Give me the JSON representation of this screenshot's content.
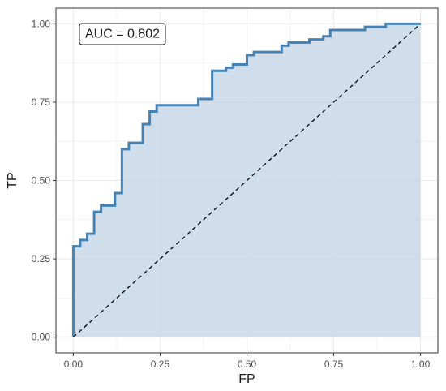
{
  "chart_data": {
    "type": "area",
    "xlabel": "FP",
    "ylabel": "TP",
    "xlim": [
      -0.05,
      1.05
    ],
    "ylim": [
      -0.05,
      1.05
    ],
    "x_ticks": [
      0.0,
      0.25,
      0.5,
      0.75,
      1.0
    ],
    "x_tick_labels": [
      "0.00",
      "0.25",
      "0.50",
      "0.75",
      "1.00"
    ],
    "y_ticks": [
      0.0,
      0.25,
      0.5,
      0.75,
      1.0
    ],
    "y_tick_labels": [
      "0.00",
      "0.25",
      "0.50",
      "0.75",
      "1.00"
    ],
    "grid": true,
    "annotation": "AUC = 0.802",
    "reference_line": {
      "x": [
        0,
        1
      ],
      "y": [
        0,
        1
      ],
      "style": "dashed"
    },
    "series": [
      {
        "fpr": [
          0.0,
          0.0,
          0.02,
          0.02,
          0.04,
          0.04,
          0.06,
          0.06,
          0.08,
          0.08,
          0.12,
          0.12,
          0.14,
          0.14,
          0.16,
          0.16,
          0.2,
          0.2,
          0.22,
          0.22,
          0.24,
          0.24,
          0.36,
          0.36,
          0.4,
          0.4,
          0.44,
          0.44,
          0.46,
          0.46,
          0.5,
          0.5,
          0.52,
          0.52,
          0.6,
          0.6,
          0.62,
          0.62,
          0.68,
          0.68,
          0.72,
          0.72,
          0.74,
          0.74,
          0.84,
          0.84,
          0.9,
          0.9,
          1.0
        ],
        "tpr": [
          0.0,
          0.29,
          0.29,
          0.31,
          0.31,
          0.33,
          0.33,
          0.4,
          0.4,
          0.42,
          0.42,
          0.46,
          0.46,
          0.6,
          0.6,
          0.62,
          0.62,
          0.68,
          0.68,
          0.72,
          0.72,
          0.74,
          0.74,
          0.76,
          0.76,
          0.85,
          0.85,
          0.86,
          0.86,
          0.87,
          0.87,
          0.9,
          0.9,
          0.91,
          0.91,
          0.93,
          0.93,
          0.94,
          0.94,
          0.95,
          0.95,
          0.96,
          0.96,
          0.98,
          0.98,
          0.99,
          0.99,
          1.0,
          1.0
        ]
      }
    ]
  },
  "colors": {
    "curve": "#4682B4",
    "fill": "#C8D8E8",
    "grid": "#EBEBEB",
    "panel_border": "#333333",
    "diagonal": "#000000"
  }
}
